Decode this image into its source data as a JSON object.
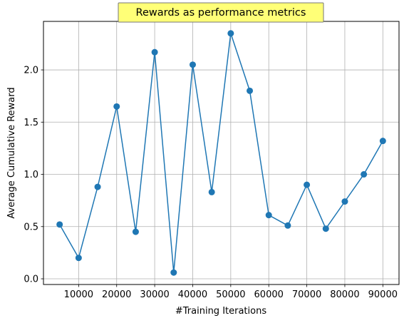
{
  "chart_data": {
    "type": "line",
    "title": "Rewards as performance metrics",
    "xlabel": "#Training Iterations",
    "ylabel": "Average Cumulative Reward",
    "x": [
      5000,
      10000,
      15000,
      20000,
      25000,
      30000,
      35000,
      40000,
      45000,
      50000,
      55000,
      60000,
      65000,
      70000,
      75000,
      80000,
      85000,
      90000
    ],
    "series": [
      {
        "values": [
          0.52,
          0.2,
          0.88,
          1.65,
          0.45,
          2.17,
          0.06,
          2.05,
          0.83,
          2.35,
          1.8,
          0.61,
          0.51,
          0.9,
          0.48,
          0.74,
          1.0,
          1.32
        ]
      }
    ],
    "xticks": [
      "10000",
      "20000",
      "30000",
      "40000",
      "50000",
      "60000",
      "70000",
      "80000",
      "90000"
    ],
    "yticks": [
      "0.0",
      "0.5",
      "1.0",
      "1.5",
      "2.0"
    ],
    "xtick_values": [
      10000,
      20000,
      30000,
      40000,
      50000,
      60000,
      70000,
      80000,
      90000
    ],
    "ytick_values": [
      0.0,
      0.5,
      1.0,
      1.5,
      2.0
    ],
    "xlim": [
      750,
      94250
    ],
    "ylim": [
      -0.0545,
      2.4645
    ],
    "grid": true,
    "colors": {
      "line": "#1f77b4",
      "grid": "#b0b0b0",
      "title_box_fill": "#ffff77",
      "title_box_edge": "#777777"
    }
  }
}
